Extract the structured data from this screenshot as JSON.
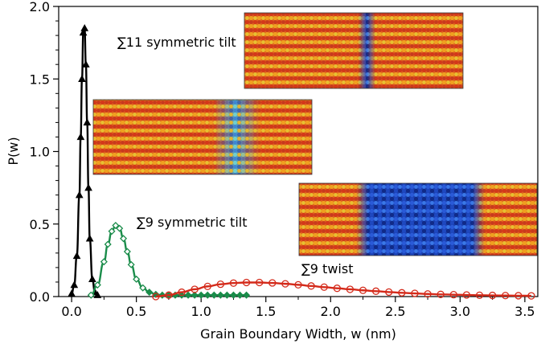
{
  "chart_data": {
    "type": "scatter",
    "xlabel": "Grain Boundary Width, w (nm)",
    "ylabel": "P(w)",
    "xlim": [
      -0.1,
      3.6
    ],
    "ylim": [
      0,
      2.0
    ],
    "xticks": [
      "0.0",
      "0.5",
      "1.0",
      "1.5",
      "2.0",
      "2.5",
      "3.0",
      "3.5"
    ],
    "yticks": [
      "0.0",
      "0.5",
      "1.0",
      "1.5",
      "2.0"
    ],
    "grid": false,
    "series": [
      {
        "name": "∑11 symmetric tilt",
        "color": "#000000",
        "marker": "triangle",
        "x": [
          0.0,
          0.02,
          0.04,
          0.06,
          0.07,
          0.08,
          0.09,
          0.1,
          0.11,
          0.12,
          0.13,
          0.14,
          0.16,
          0.18,
          0.2
        ],
        "y": [
          0.02,
          0.08,
          0.28,
          0.7,
          1.1,
          1.5,
          1.82,
          1.85,
          1.6,
          1.2,
          0.75,
          0.4,
          0.12,
          0.03,
          0.01
        ]
      },
      {
        "name": "∑9 symmetric tilt",
        "color": "#1a8c4a",
        "marker": "diamond",
        "x": [
          0.15,
          0.2,
          0.25,
          0.28,
          0.31,
          0.34,
          0.37,
          0.4,
          0.43,
          0.46,
          0.5,
          0.55,
          0.6,
          0.65,
          0.7,
          0.75,
          0.8,
          0.85,
          0.9,
          0.95,
          1.0,
          1.05,
          1.1,
          1.15,
          1.2,
          1.25,
          1.3,
          1.35
        ],
        "y": [
          0.01,
          0.08,
          0.24,
          0.36,
          0.45,
          0.49,
          0.47,
          0.4,
          0.31,
          0.22,
          0.12,
          0.06,
          0.03,
          0.015,
          0.01,
          0.01,
          0.01,
          0.01,
          0.01,
          0.01,
          0.01,
          0.01,
          0.01,
          0.01,
          0.01,
          0.01,
          0.01,
          0.01
        ]
      },
      {
        "name": "∑9 twist",
        "color": "#d42a1a",
        "marker": "circle",
        "x": [
          0.65,
          0.75,
          0.85,
          0.95,
          1.05,
          1.15,
          1.25,
          1.35,
          1.45,
          1.55,
          1.65,
          1.75,
          1.85,
          1.95,
          2.05,
          2.15,
          2.25,
          2.35,
          2.45,
          2.55,
          2.65,
          2.75,
          2.85,
          2.95,
          3.05,
          3.15,
          3.25,
          3.35,
          3.45,
          3.55
        ],
        "y": [
          0.0,
          0.01,
          0.03,
          0.05,
          0.07,
          0.085,
          0.093,
          0.097,
          0.097,
          0.094,
          0.088,
          0.081,
          0.073,
          0.065,
          0.057,
          0.05,
          0.043,
          0.037,
          0.031,
          0.026,
          0.022,
          0.018,
          0.015,
          0.013,
          0.011,
          0.009,
          0.008,
          0.007,
          0.006,
          0.005
        ]
      }
    ],
    "annotations": [
      "∑11 symmetric tilt",
      "∑9 symmetric tilt",
      "∑9 twist"
    ]
  },
  "insets": [
    {
      "id": "sigma11-tilt",
      "label": "∑11 symmetric tilt"
    },
    {
      "id": "sigma9-tilt",
      "label": "∑9 symmetric tilt"
    },
    {
      "id": "sigma9-twist",
      "label": "∑9 twist"
    }
  ]
}
